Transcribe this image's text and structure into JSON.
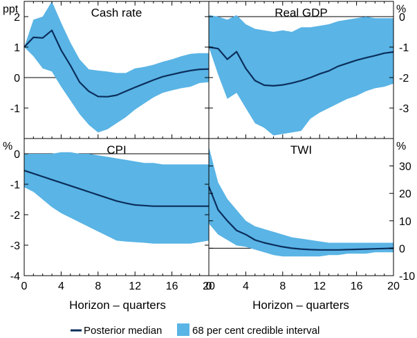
{
  "colors": {
    "band": "#5ab4e5",
    "median": "#0a2e5c",
    "frame": "#000000",
    "gridline": "#000000"
  },
  "legend": {
    "median_label": "Posterior median",
    "band_label": "68 per cent credible interval"
  },
  "xlabel": "Horizon – quarters",
  "chart_data": [
    {
      "type": "area",
      "title": "Cash rate",
      "unit": "ppt",
      "unit_side": "left",
      "xlim": [
        0,
        20
      ],
      "ylim": [
        -2,
        2.5
      ],
      "yticks": [
        -1,
        0,
        1,
        2
      ],
      "ytick_labels": [
        "-1",
        "0",
        "1",
        "2"
      ],
      "x": [
        0,
        1,
        2,
        3,
        4,
        5,
        6,
        7,
        8,
        9,
        10,
        11,
        12,
        13,
        14,
        15,
        16,
        17,
        18,
        19,
        20
      ],
      "series": [
        {
          "name": "Posterior median",
          "values": [
            1.0,
            1.32,
            1.3,
            1.55,
            0.9,
            0.4,
            -0.15,
            -0.45,
            -0.62,
            -0.63,
            -0.58,
            -0.45,
            -0.32,
            -0.2,
            -0.08,
            0.03,
            0.1,
            0.17,
            0.23,
            0.27,
            0.28
          ]
        },
        {
          "name": "68 per cent credible interval (upper)",
          "values": [
            1.0,
            1.9,
            2.0,
            2.5,
            1.8,
            1.15,
            0.6,
            0.27,
            0.23,
            0.2,
            0.15,
            0.15,
            0.3,
            0.35,
            0.42,
            0.52,
            0.6,
            0.7,
            0.78,
            0.8,
            0.8
          ]
        },
        {
          "name": "68 per cent credible interval (lower)",
          "values": [
            1.0,
            0.7,
            0.3,
            0.2,
            -0.3,
            -0.75,
            -1.2,
            -1.55,
            -1.8,
            -1.7,
            -1.5,
            -1.3,
            -1.05,
            -0.85,
            -0.65,
            -0.5,
            -0.42,
            -0.35,
            -0.3,
            -0.18,
            -0.15
          ]
        }
      ]
    },
    {
      "type": "area",
      "title": "Real GDP",
      "unit": "%",
      "unit_side": "right",
      "xlim": [
        0,
        20
      ],
      "ylim": [
        -4,
        0.5
      ],
      "yticks": [
        -3,
        -2,
        -1,
        0
      ],
      "ytick_labels": [
        "-3",
        "-2",
        "-1",
        "0"
      ],
      "x": [
        0,
        1,
        2,
        3,
        4,
        5,
        6,
        7,
        8,
        9,
        10,
        11,
        12,
        13,
        14,
        15,
        16,
        17,
        18,
        19,
        20
      ],
      "series": [
        {
          "name": "Posterior median",
          "values": [
            -1.0,
            -1.05,
            -1.4,
            -1.15,
            -1.7,
            -2.1,
            -2.25,
            -2.27,
            -2.24,
            -2.18,
            -2.1,
            -2.0,
            -1.88,
            -1.78,
            -1.63,
            -1.53,
            -1.43,
            -1.35,
            -1.28,
            -1.2,
            -1.16
          ]
        },
        {
          "name": "68 per cent credible interval (upper)",
          "values": [
            0.05,
            0.0,
            -0.1,
            0.05,
            -0.25,
            -0.4,
            -0.45,
            -0.5,
            -0.45,
            -0.5,
            -0.35,
            -0.35,
            -0.3,
            -0.25,
            -0.15,
            -0.1,
            -0.05,
            0.0,
            -0.05,
            -0.05,
            -0.05
          ]
        },
        {
          "name": "68 per cent credible interval (lower)",
          "values": [
            -1.0,
            -1.9,
            -2.7,
            -2.5,
            -3.0,
            -3.5,
            -3.65,
            -3.9,
            -3.85,
            -3.8,
            -3.75,
            -3.35,
            -3.15,
            -3.0,
            -2.85,
            -2.7,
            -2.6,
            -2.45,
            -2.35,
            -2.3,
            -2.2
          ]
        }
      ]
    },
    {
      "type": "area",
      "title": "CPI",
      "unit": "%",
      "unit_side": "left",
      "xlim": [
        0,
        20
      ],
      "ylim": [
        -4,
        0.5
      ],
      "yticks": [
        -4,
        -3,
        -2,
        -1,
        0
      ],
      "ytick_labels": [
        "-4",
        "-3",
        "-2",
        "-1",
        "0"
      ],
      "x": [
        0,
        1,
        2,
        3,
        4,
        5,
        6,
        7,
        8,
        9,
        10,
        11,
        12,
        13,
        14,
        15,
        16,
        17,
        18,
        19,
        20
      ],
      "series": [
        {
          "name": "Posterior median",
          "values": [
            -0.55,
            -0.65,
            -0.75,
            -0.85,
            -0.95,
            -1.05,
            -1.15,
            -1.25,
            -1.35,
            -1.45,
            -1.55,
            -1.62,
            -1.68,
            -1.7,
            -1.72,
            -1.72,
            -1.72,
            -1.72,
            -1.72,
            -1.72,
            -1.72
          ]
        },
        {
          "name": "68 per cent credible interval (upper)",
          "values": [
            0.0,
            0.0,
            0.0,
            0.0,
            0.05,
            0.05,
            0.0,
            0.0,
            -0.05,
            -0.1,
            -0.15,
            -0.2,
            -0.25,
            -0.3,
            -0.3,
            -0.35,
            -0.35,
            -0.35,
            -0.35,
            -0.35,
            -0.35
          ]
        },
        {
          "name": "68 per cent credible interval (lower)",
          "values": [
            -1.1,
            -1.25,
            -1.5,
            -1.75,
            -1.95,
            -2.1,
            -2.25,
            -2.4,
            -2.55,
            -2.7,
            -2.85,
            -2.88,
            -2.9,
            -2.92,
            -2.95,
            -2.95,
            -2.95,
            -2.95,
            -2.95,
            -2.9,
            -2.85
          ]
        }
      ]
    },
    {
      "type": "area",
      "title": "TWI",
      "unit": "%",
      "unit_side": "right",
      "xlim": [
        0,
        20
      ],
      "ylim": [
        -10,
        40
      ],
      "yticks": [
        -10,
        0,
        10,
        20,
        30
      ],
      "ytick_labels": [
        "-10",
        "0",
        "10",
        "20",
        "30"
      ],
      "x": [
        0,
        1,
        2,
        3,
        4,
        5,
        6,
        7,
        8,
        9,
        10,
        11,
        12,
        13,
        14,
        15,
        16,
        17,
        18,
        19,
        20
      ],
      "series": [
        {
          "name": "Posterior median",
          "values": [
            22.5,
            14,
            10,
            6.5,
            5,
            3,
            2,
            1.2,
            0.5,
            0,
            -0.3,
            -0.5,
            -0.6,
            -0.6,
            -0.6,
            -0.5,
            -0.4,
            -0.3,
            -0.2,
            -0.1,
            0
          ]
        },
        {
          "name": "68 per cent credible interval (upper)",
          "values": [
            37,
            24,
            18,
            14,
            10,
            8,
            7,
            6,
            5,
            4,
            3.5,
            3,
            2.5,
            2,
            2,
            2,
            2,
            2,
            2,
            2,
            2
          ]
        },
        {
          "name": "68 per cent credible interval (lower)",
          "values": [
            9,
            5,
            3,
            1,
            0.5,
            -0.5,
            -1.5,
            -2.5,
            -3,
            -3,
            -3,
            -3,
            -3,
            -2.5,
            -2.5,
            -2,
            -2,
            -2,
            -1.5,
            -1.5,
            -1.5
          ]
        }
      ]
    }
  ],
  "x_ticks": [
    "0",
    "4",
    "8",
    "12",
    "16",
    "20"
  ]
}
